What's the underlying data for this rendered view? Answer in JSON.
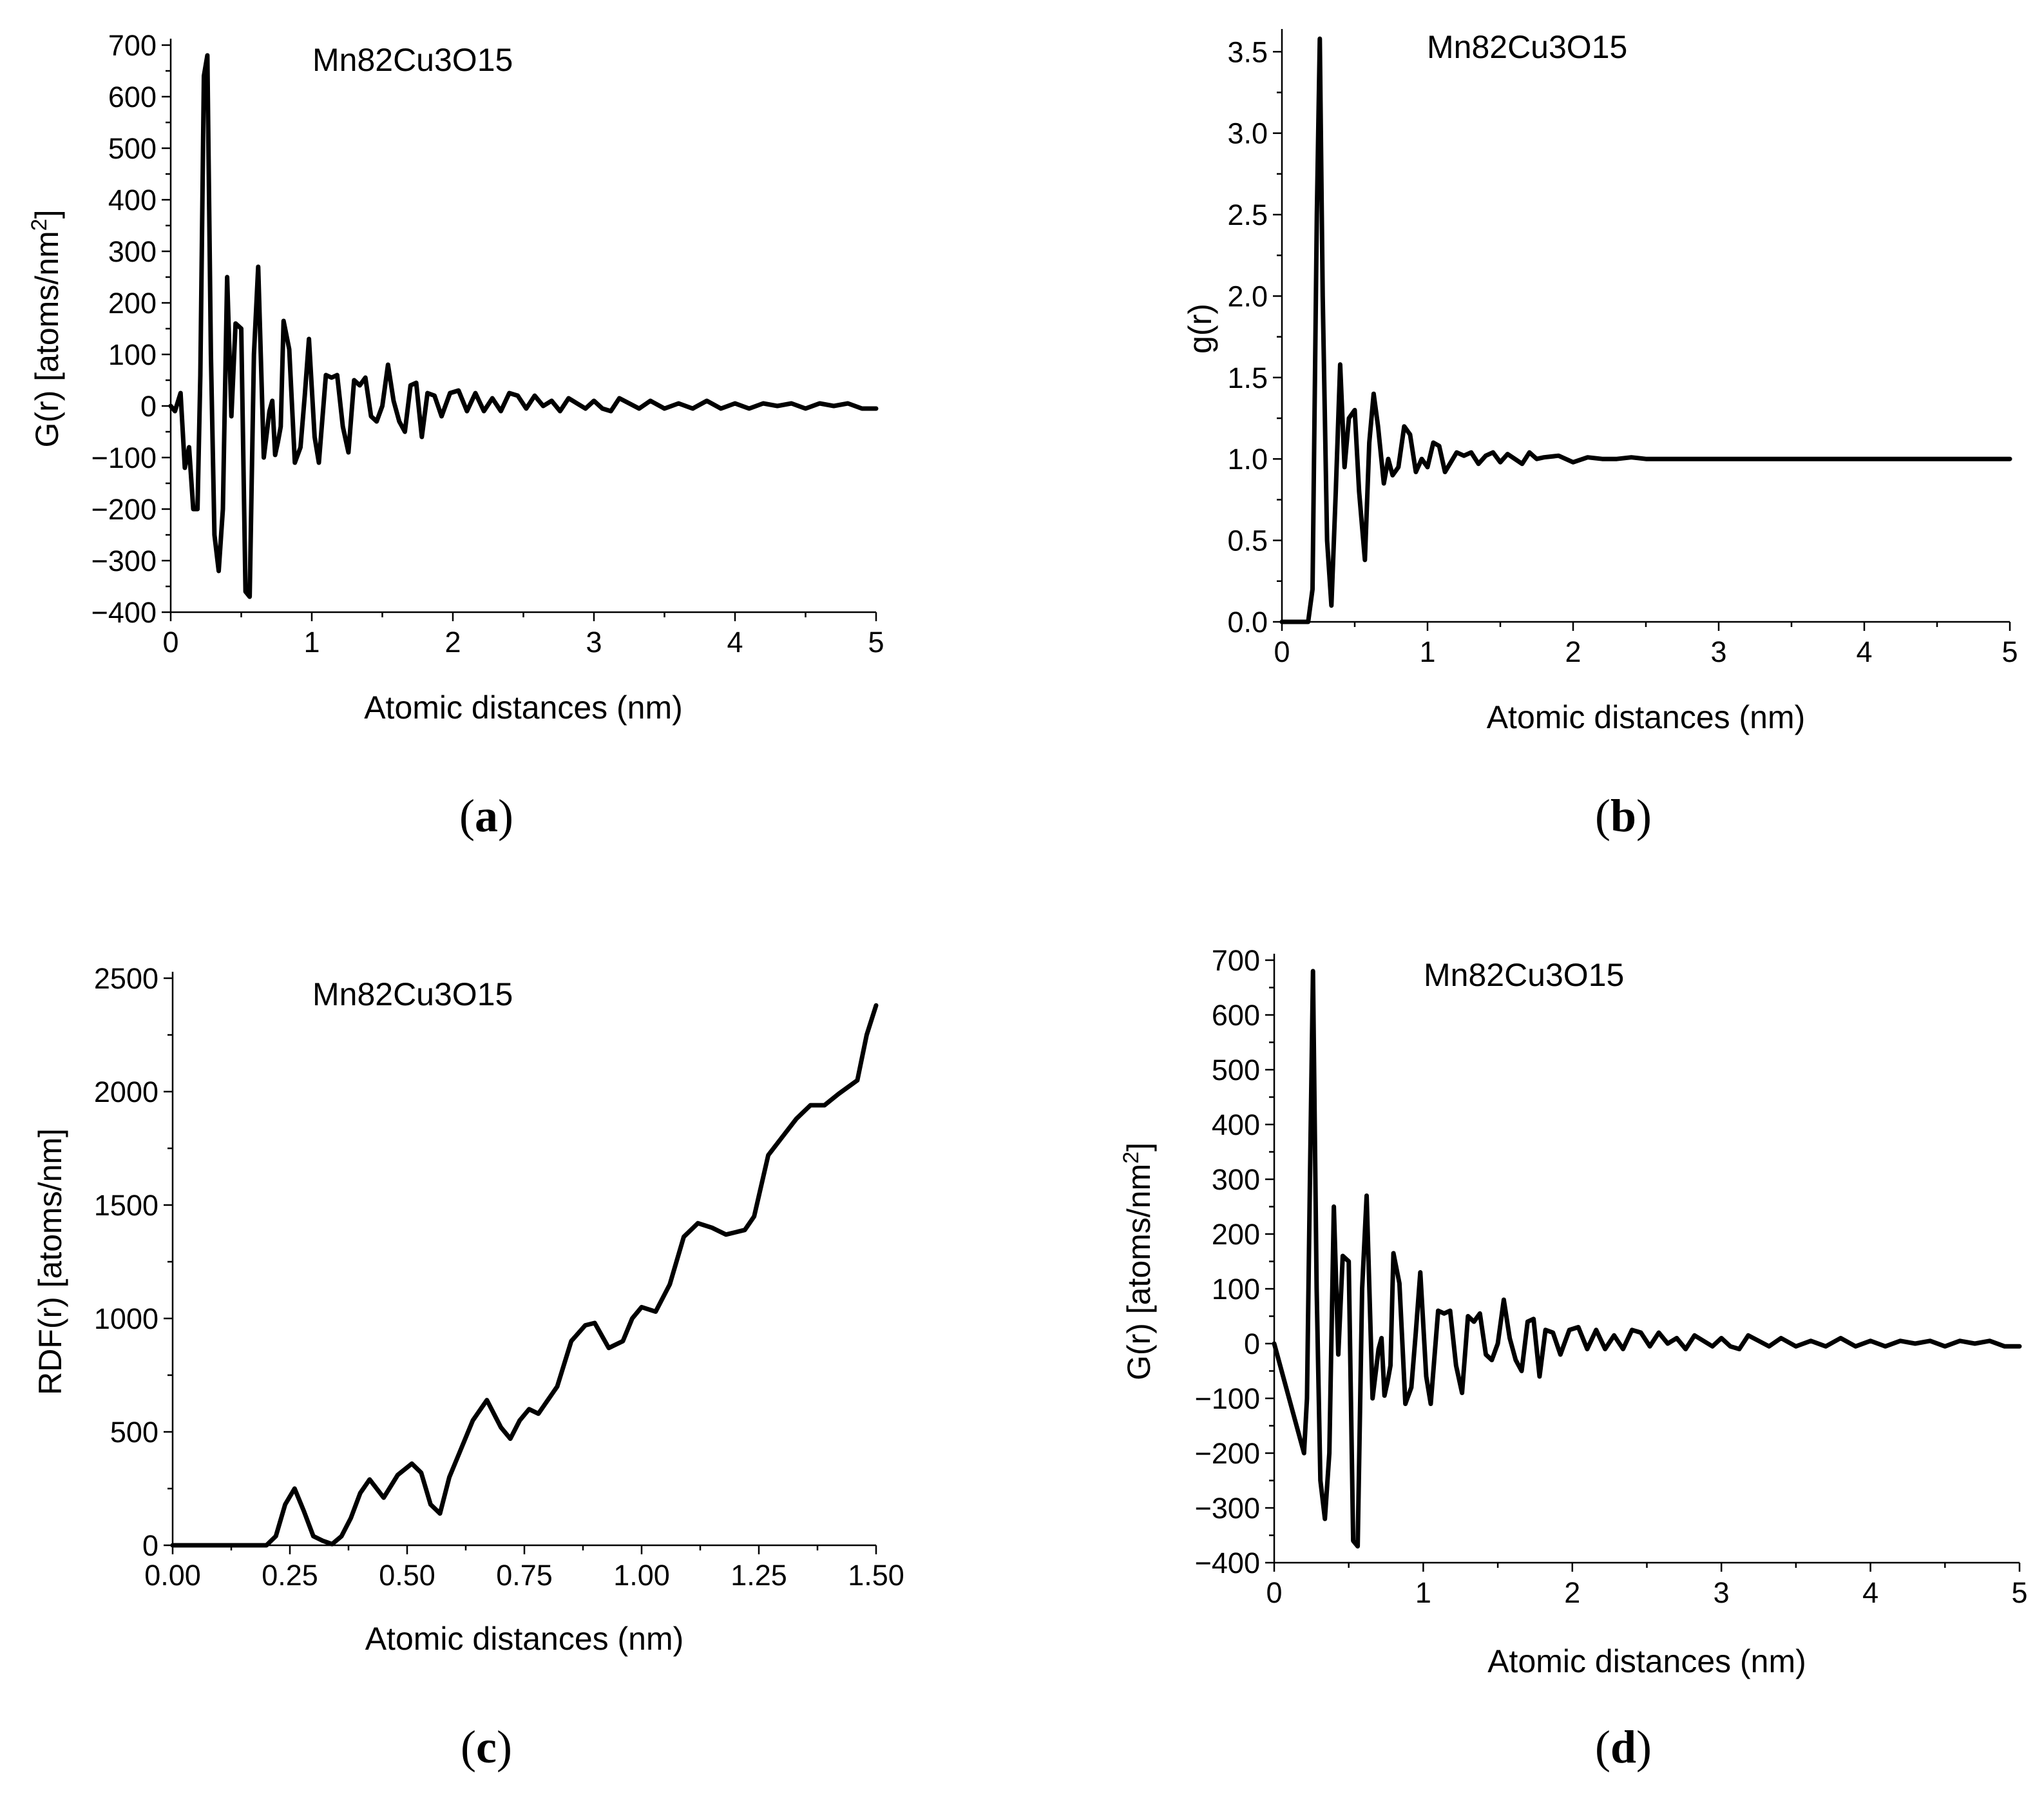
{
  "chart_data": [
    {
      "panel": "(a)",
      "panel_letter": "a",
      "type": "line",
      "title": "",
      "annotation": "Mn82Cu3O15",
      "xlabel": "Atomic distances (nm)",
      "ylabel": "G(r) [atoms/nm",
      "ylabel_sup": "2",
      "ylabel_end": "]",
      "xlim": [
        0,
        5
      ],
      "ylim": [
        -400,
        700
      ],
      "xticks": [
        "0",
        "1",
        "2",
        "3",
        "4",
        "5"
      ],
      "yticks": [
        "700",
        "600",
        "500",
        "400",
        "300",
        "200",
        "100",
        "0",
        "−100",
        "−200",
        "−300",
        "−400"
      ],
      "series": [
        {
          "name": "G(r)",
          "x": [
            0,
            0.03,
            0.07,
            0.1,
            0.13,
            0.16,
            0.19,
            0.21,
            0.235,
            0.26,
            0.285,
            0.31,
            0.34,
            0.37,
            0.4,
            0.43,
            0.46,
            0.5,
            0.53,
            0.56,
            0.59,
            0.62,
            0.66,
            0.7,
            0.72,
            0.74,
            0.76,
            0.78,
            0.8,
            0.84,
            0.88,
            0.92,
            0.95,
            0.98,
            1.02,
            1.05,
            1.1,
            1.14,
            1.18,
            1.22,
            1.26,
            1.3,
            1.34,
            1.38,
            1.42,
            1.46,
            1.5,
            1.54,
            1.58,
            1.62,
            1.66,
            1.7,
            1.74,
            1.78,
            1.82,
            1.87,
            1.92,
            1.98,
            2.04,
            2.1,
            2.16,
            2.22,
            2.28,
            2.34,
            2.4,
            2.46,
            2.52,
            2.58,
            2.64,
            2.7,
            2.76,
            2.82,
            2.88,
            2.94,
            3.0,
            3.06,
            3.12,
            3.18,
            3.25,
            3.32,
            3.4,
            3.5,
            3.6,
            3.7,
            3.8,
            3.9,
            4.0,
            4.1,
            4.2,
            4.3,
            4.4,
            4.5,
            4.6,
            4.7,
            4.8,
            4.9,
            5.0
          ],
          "y": [
            0,
            -10,
            25,
            -120,
            -80,
            -200,
            -200,
            60,
            640,
            680,
            100,
            -250,
            -320,
            -200,
            250,
            -20,
            160,
            150,
            -360,
            -370,
            100,
            270,
            -100,
            -10,
            10,
            -95,
            -70,
            -40,
            165,
            110,
            -110,
            -80,
            20,
            130,
            -60,
            -110,
            60,
            55,
            60,
            -40,
            -90,
            50,
            40,
            55,
            -20,
            -30,
            0,
            80,
            10,
            -30,
            -50,
            40,
            45,
            -60,
            25,
            20,
            -20,
            25,
            30,
            -10,
            25,
            -10,
            15,
            -10,
            25,
            20,
            -5,
            20,
            0,
            10,
            -10,
            15,
            5,
            -5,
            10,
            -5,
            -10,
            15,
            5,
            -5,
            10,
            -5,
            5,
            -5,
            10,
            -5,
            5,
            -5,
            5,
            0,
            5,
            -5,
            5,
            0,
            5,
            -5,
            -5
          ]
        }
      ]
    },
    {
      "panel": "(b)",
      "panel_letter": "b",
      "type": "line",
      "title": "",
      "annotation": "Mn82Cu3O15",
      "xlabel": "Atomic distances (nm)",
      "ylabel": "g(r)",
      "xlim": [
        0,
        5
      ],
      "ylim": [
        0,
        3.6
      ],
      "xticks": [
        "0",
        "1",
        "2",
        "3",
        "4",
        "5"
      ],
      "yticks": [
        "3.5",
        "3.0",
        "2.5",
        "2.0",
        "1.5",
        "1.0",
        "0.5",
        "0.0"
      ],
      "series": [
        {
          "name": "g(r)",
          "x": [
            0,
            0.18,
            0.21,
            0.24,
            0.26,
            0.28,
            0.31,
            0.34,
            0.37,
            0.4,
            0.43,
            0.46,
            0.5,
            0.53,
            0.57,
            0.6,
            0.63,
            0.66,
            0.7,
            0.73,
            0.76,
            0.8,
            0.84,
            0.88,
            0.92,
            0.96,
            1.0,
            1.04,
            1.08,
            1.12,
            1.16,
            1.2,
            1.25,
            1.3,
            1.35,
            1.4,
            1.45,
            1.5,
            1.55,
            1.6,
            1.65,
            1.7,
            1.75,
            1.8,
            1.9,
            2.0,
            2.1,
            2.2,
            2.3,
            2.4,
            2.5,
            2.6,
            2.8,
            3.0,
            3.5,
            4.0,
            4.5,
            5.0
          ],
          "y": [
            0,
            0,
            0.2,
            2.5,
            3.58,
            2.0,
            0.5,
            0.1,
            0.8,
            1.58,
            0.95,
            1.25,
            1.3,
            0.8,
            0.38,
            1.1,
            1.4,
            1.2,
            0.85,
            1.0,
            0.9,
            0.95,
            1.2,
            1.15,
            0.92,
            1.0,
            0.95,
            1.1,
            1.08,
            0.92,
            0.98,
            1.04,
            1.02,
            1.04,
            0.97,
            1.02,
            1.04,
            0.98,
            1.03,
            1.0,
            0.97,
            1.04,
            1.0,
            1.01,
            1.02,
            0.98,
            1.01,
            1.0,
            1.0,
            1.01,
            1.0,
            1.0,
            1.0,
            1.0,
            1.0,
            1.0,
            1.0,
            1.0
          ]
        }
      ]
    },
    {
      "panel": "(c)",
      "panel_letter": "c",
      "type": "line",
      "title": "",
      "annotation": "Mn82Cu3O15",
      "xlabel": "Atomic distances (nm)",
      "ylabel": "RDF(r) [atoms/nm]",
      "xlim": [
        0,
        1.5
      ],
      "ylim": [
        0,
        2500
      ],
      "xticks": [
        "0.00",
        "0.25",
        "0.50",
        "0.75",
        "1.00",
        "1.25",
        "1.50"
      ],
      "yticks": [
        "2500",
        "2000",
        "1500",
        "1000",
        "500",
        "0"
      ],
      "series": [
        {
          "name": "RDF(r)",
          "x": [
            0,
            0.2,
            0.22,
            0.24,
            0.26,
            0.28,
            0.3,
            0.32,
            0.34,
            0.36,
            0.38,
            0.4,
            0.42,
            0.45,
            0.48,
            0.51,
            0.53,
            0.55,
            0.57,
            0.59,
            0.61,
            0.64,
            0.67,
            0.7,
            0.72,
            0.74,
            0.76,
            0.78,
            0.82,
            0.85,
            0.88,
            0.9,
            0.93,
            0.96,
            0.98,
            1.0,
            1.03,
            1.06,
            1.09,
            1.12,
            1.15,
            1.18,
            1.22,
            1.24,
            1.27,
            1.3,
            1.33,
            1.36,
            1.39,
            1.42,
            1.44,
            1.46,
            1.48,
            1.5
          ],
          "y": [
            0,
            0,
            40,
            180,
            250,
            150,
            40,
            20,
            5,
            40,
            120,
            230,
            290,
            210,
            310,
            360,
            320,
            180,
            140,
            300,
            400,
            550,
            640,
            520,
            470,
            550,
            600,
            580,
            700,
            900,
            970,
            980,
            870,
            900,
            1000,
            1050,
            1030,
            1150,
            1360,
            1420,
            1400,
            1370,
            1390,
            1450,
            1720,
            1800,
            1880,
            1940,
            1940,
            1990,
            2020,
            2050,
            2250,
            2380
          ]
        }
      ]
    },
    {
      "panel": "(d)",
      "panel_letter": "d",
      "type": "line",
      "title": "",
      "annotation": "Mn82Cu3O15",
      "xlabel": "Atomic distances (nm)",
      "ylabel": "G(r) [atoms/nm",
      "ylabel_sup": "2",
      "ylabel_end": "]",
      "xlim": [
        0,
        5
      ],
      "ylim": [
        -400,
        700
      ],
      "xticks": [
        "0",
        "1",
        "2",
        "3",
        "4",
        "5"
      ],
      "yticks": [
        "700",
        "600",
        "500",
        "400",
        "300",
        "200",
        "100",
        "0",
        "−100",
        "−200",
        "−300",
        "−400"
      ],
      "series": [
        {
          "name": "G(r)",
          "x": [
            0,
            0.1,
            0.2,
            0.22,
            0.24,
            0.26,
            0.285,
            0.31,
            0.34,
            0.37,
            0.4,
            0.43,
            0.46,
            0.5,
            0.53,
            0.56,
            0.59,
            0.62,
            0.66,
            0.7,
            0.72,
            0.74,
            0.76,
            0.78,
            0.8,
            0.84,
            0.88,
            0.92,
            0.95,
            0.98,
            1.02,
            1.05,
            1.1,
            1.14,
            1.18,
            1.22,
            1.26,
            1.3,
            1.34,
            1.38,
            1.42,
            1.46,
            1.5,
            1.54,
            1.58,
            1.62,
            1.66,
            1.7,
            1.74,
            1.78,
            1.82,
            1.87,
            1.92,
            1.98,
            2.04,
            2.1,
            2.16,
            2.22,
            2.28,
            2.34,
            2.4,
            2.46,
            2.52,
            2.58,
            2.64,
            2.7,
            2.76,
            2.82,
            2.88,
            2.94,
            3.0,
            3.06,
            3.12,
            3.18,
            3.25,
            3.32,
            3.4,
            3.5,
            3.6,
            3.7,
            3.8,
            3.9,
            4.0,
            4.1,
            4.2,
            4.3,
            4.4,
            4.5,
            4.6,
            4.7,
            4.8,
            4.9,
            5.0
          ],
          "y": [
            0,
            -100,
            -200,
            -100,
            300,
            680,
            100,
            -250,
            -320,
            -200,
            250,
            -20,
            160,
            150,
            -360,
            -370,
            100,
            270,
            -100,
            -10,
            10,
            -95,
            -70,
            -40,
            165,
            110,
            -110,
            -80,
            20,
            130,
            -60,
            -110,
            60,
            55,
            60,
            -40,
            -90,
            50,
            40,
            55,
            -20,
            -30,
            0,
            80,
            10,
            -30,
            -50,
            40,
            45,
            -60,
            25,
            20,
            -20,
            25,
            30,
            -10,
            25,
            -10,
            15,
            -10,
            25,
            20,
            -5,
            20,
            0,
            10,
            -10,
            15,
            5,
            -5,
            10,
            -5,
            -10,
            15,
            5,
            -5,
            10,
            -5,
            5,
            -5,
            10,
            -5,
            5,
            -5,
            5,
            0,
            5,
            -5,
            5,
            0,
            5,
            -5,
            -5
          ]
        }
      ]
    }
  ]
}
